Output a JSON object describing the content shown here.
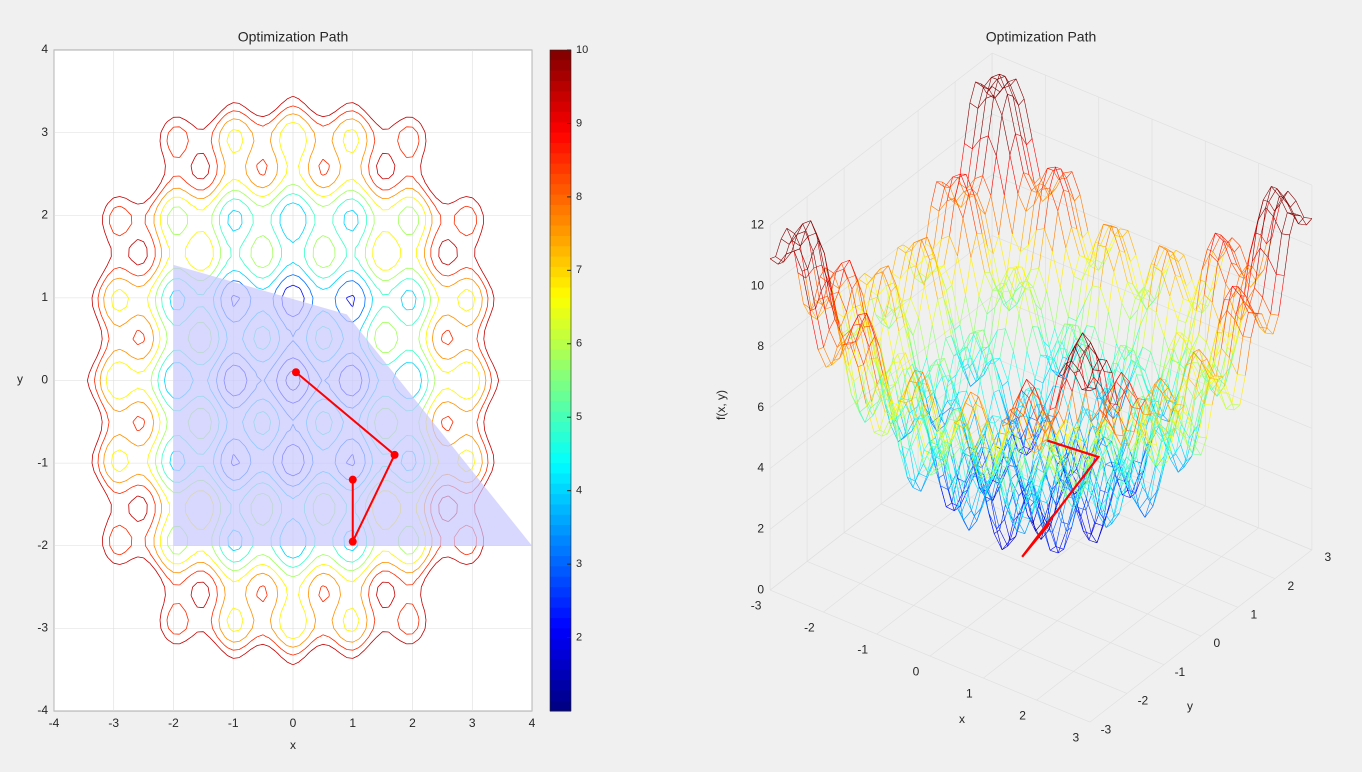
{
  "chart_data": [
    {
      "type": "contour",
      "title": "Optimization Path",
      "xlabel": "x",
      "ylabel": "y",
      "xlim": [
        -4,
        4
      ],
      "ylim": [
        -4,
        4
      ],
      "xticks": [
        -4,
        -3,
        -2,
        -1,
        0,
        1,
        2,
        3,
        4
      ],
      "yticks": [
        -4,
        -3,
        -2,
        -1,
        0,
        1,
        2,
        3,
        4
      ],
      "grid": true,
      "colorbar": {
        "lim": [
          1,
          10
        ],
        "ticks": [
          2,
          3,
          4,
          5,
          6,
          7,
          8,
          9,
          10
        ]
      },
      "region": {
        "x": [
          -2,
          0.9,
          4,
          -2
        ],
        "y": [
          1.4,
          0.8,
          -2,
          -2
        ],
        "color": "#c8c8ff"
      },
      "path": {
        "x": [
          1,
          1,
          1.7,
          0.05
        ],
        "y": [
          -1.2,
          -1.95,
          -0.9,
          0.1
        ],
        "color": "#ff0000"
      }
    },
    {
      "type": "surface3d",
      "title": "Optimization Path",
      "xlabel": "x",
      "ylabel": "y",
      "zlabel": "f(x, y)",
      "xlim": [
        -3,
        3
      ],
      "ylim": [
        -3,
        3
      ],
      "zlim": [
        0,
        12
      ],
      "xticks": [
        -3,
        -2,
        -1,
        0,
        1,
        2,
        3
      ],
      "yticks": [
        -3,
        -2,
        -1,
        0,
        1,
        2,
        3
      ],
      "zticks": [
        0,
        2,
        4,
        6,
        8,
        10,
        12
      ],
      "path": {
        "x": [
          1,
          1,
          1.7,
          0.05
        ],
        "y": [
          -1.2,
          -1.95,
          -0.9,
          0.1
        ],
        "z": [
          3.4,
          3.0,
          5.8,
          4.2
        ],
        "color": "#ff0000"
      }
    }
  ]
}
